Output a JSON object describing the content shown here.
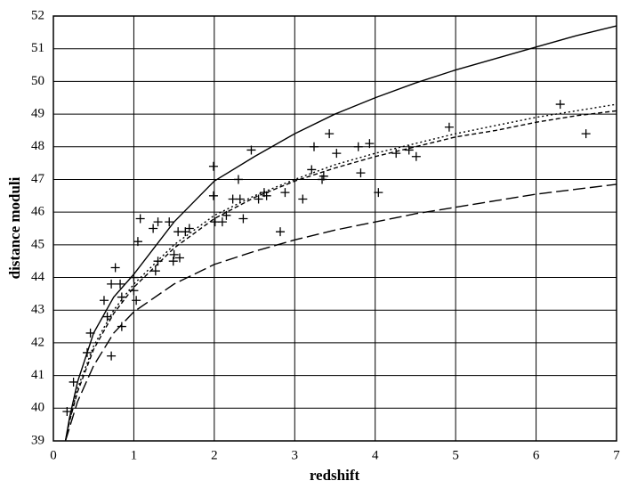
{
  "chart_data": {
    "type": "line",
    "xlabel": "redshift",
    "ylabel": "distance moduli",
    "xlim": [
      0,
      7
    ],
    "xticks": [
      0,
      1,
      2,
      3,
      4,
      5,
      6,
      7
    ],
    "ylim": [
      39,
      52
    ],
    "yticks": [
      39,
      40,
      41,
      42,
      43,
      44,
      45,
      46,
      47,
      48,
      49,
      50,
      51,
      52
    ],
    "grid": true,
    "x": [
      0.15,
      0.2,
      0.3,
      0.5,
      0.75,
      1,
      1.5,
      2,
      2.5,
      3,
      3.5,
      4,
      4.5,
      5,
      5.5,
      6,
      6.5,
      7
    ],
    "series": [
      {
        "color": "#000000",
        "dash": "solid",
        "values": [
          39.0,
          39.7,
          40.8,
          42.3,
          43.4,
          44.1,
          45.7,
          46.95,
          47.7,
          48.4,
          49.0,
          49.5,
          49.95,
          50.35,
          50.7,
          51.05,
          51.4,
          51.7
        ]
      },
      {
        "color": "#000000",
        "dash": "dotted",
        "values": [
          39.0,
          39.6,
          40.6,
          41.9,
          43.0,
          43.8,
          45.0,
          45.9,
          46.5,
          47.0,
          47.45,
          47.8,
          48.1,
          48.4,
          48.65,
          48.9,
          49.1,
          49.3
        ]
      },
      {
        "color": "#000000",
        "dash": "dashed",
        "values": [
          39.0,
          39.6,
          40.5,
          41.8,
          42.9,
          43.7,
          44.9,
          45.8,
          46.45,
          46.95,
          47.35,
          47.7,
          48.0,
          48.3,
          48.5,
          48.75,
          48.95,
          49.1
        ]
      },
      {
        "color": "#000000",
        "dash": "long-dashed",
        "values": [
          39.0,
          39.4,
          40.2,
          41.3,
          42.3,
          42.95,
          43.8,
          44.4,
          44.8,
          45.15,
          45.45,
          45.7,
          45.95,
          46.15,
          46.35,
          46.55,
          46.7,
          46.85
        ]
      }
    ],
    "scatter": {
      "color": "#000000",
      "x": [
        0.17,
        0.25,
        0.42,
        0.46,
        0.63,
        0.67,
        0.72,
        0.72,
        0.77,
        0.83,
        0.85,
        0.85,
        1.0,
        1.0,
        1.03,
        1.05,
        1.08,
        1.24,
        1.27,
        1.3,
        1.3,
        1.44,
        1.49,
        1.5,
        1.55,
        1.57,
        1.64,
        1.69,
        1.99,
        1.99,
        2.01,
        2.1,
        2.15,
        2.23,
        2.3,
        2.32,
        2.36,
        2.46,
        2.55,
        2.62,
        2.65,
        2.82,
        2.88,
        3.1,
        3.21,
        3.24,
        3.34,
        3.36,
        3.43,
        3.52,
        3.79,
        3.82,
        3.93,
        4.04,
        4.26,
        4.42,
        4.51,
        4.92,
        6.3,
        6.62
      ],
      "y": [
        39.9,
        40.8,
        41.7,
        42.3,
        43.3,
        42.8,
        43.8,
        41.6,
        44.3,
        43.8,
        42.5,
        43.4,
        44.0,
        43.6,
        43.3,
        45.1,
        45.8,
        45.5,
        44.2,
        44.5,
        45.7,
        45.7,
        44.5,
        44.7,
        45.4,
        44.6,
        45.4,
        45.5,
        47.4,
        46.5,
        45.7,
        45.7,
        45.9,
        46.4,
        47.0,
        46.4,
        45.8,
        47.9,
        46.4,
        46.6,
        46.5,
        45.4,
        46.6,
        46.4,
        47.3,
        48.0,
        47.0,
        47.1,
        48.4,
        47.8,
        48.0,
        47.2,
        48.1,
        46.6,
        47.8,
        47.9,
        47.7,
        48.6,
        49.3,
        48.4
      ]
    }
  }
}
